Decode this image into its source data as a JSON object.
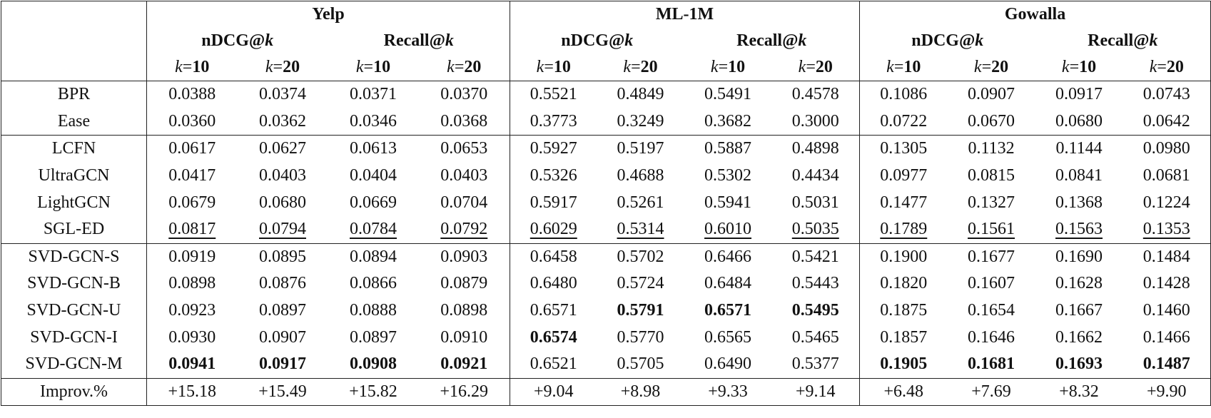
{
  "header": {
    "groups": [
      {
        "title": "Yelp",
        "metrics": [
          {
            "title": "nDCG@k",
            "ks": [
              "k=10",
              "k=20"
            ]
          },
          {
            "title": "Recall@k",
            "ks": [
              "k=10",
              "k=20"
            ]
          }
        ]
      },
      {
        "title": "ML-1M",
        "metrics": [
          {
            "title": "nDCG@k",
            "ks": [
              "k=10",
              "k=20"
            ]
          },
          {
            "title": "Recall@k",
            "ks": [
              "k=10",
              "k=20"
            ]
          }
        ]
      },
      {
        "title": "Gowalla",
        "metrics": [
          {
            "title": "nDCG@k",
            "ks": [
              "k=10",
              "k=20"
            ]
          },
          {
            "title": "Recall@k",
            "ks": [
              "k=10",
              "k=20"
            ]
          }
        ]
      }
    ]
  },
  "sections": [
    [
      {
        "method": "BPR",
        "cells": [
          "0.0388",
          "0.0374",
          "0.0371",
          "0.0370",
          "0.5521",
          "0.4849",
          "0.5491",
          "0.4578",
          "0.1086",
          "0.0907",
          "0.0917",
          "0.0743"
        ]
      },
      {
        "method": "Ease",
        "cells": [
          "0.0360",
          "0.0362",
          "0.0346",
          "0.0368",
          "0.3773",
          "0.3249",
          "0.3682",
          "0.3000",
          "0.0722",
          "0.0670",
          "0.0680",
          "0.0642"
        ]
      }
    ],
    [
      {
        "method": "LCFN",
        "cells": [
          "0.0617",
          "0.0627",
          "0.0613",
          "0.0653",
          "0.5927",
          "0.5197",
          "0.5887",
          "0.4898",
          "0.1305",
          "0.1132",
          "0.1144",
          "0.0980"
        ]
      },
      {
        "method": "UltraGCN",
        "cells": [
          "0.0417",
          "0.0403",
          "0.0404",
          "0.0403",
          "0.5326",
          "0.4688",
          "0.5302",
          "0.4434",
          "0.0977",
          "0.0815",
          "0.0841",
          "0.0681"
        ]
      },
      {
        "method": "LightGCN",
        "cells": [
          "0.0679",
          "0.0680",
          "0.0669",
          "0.0704",
          "0.5917",
          "0.5261",
          "0.5941",
          "0.5031",
          "0.1477",
          "0.1327",
          "0.1368",
          "0.1224"
        ]
      },
      {
        "method": "SGL-ED",
        "cells": [
          {
            "text": "0.0817",
            "underline": true
          },
          {
            "text": "0.0794",
            "underline": true
          },
          {
            "text": "0.0784",
            "underline": true
          },
          {
            "text": "0.0792",
            "underline": true
          },
          {
            "text": "0.6029",
            "underline": true
          },
          {
            "text": "0.5314",
            "underline": true
          },
          {
            "text": "0.6010",
            "underline": true
          },
          {
            "text": "0.5035",
            "underline": true
          },
          {
            "text": "0.1789",
            "underline": true
          },
          {
            "text": "0.1561",
            "underline": true
          },
          {
            "text": "0.1563",
            "underline": true
          },
          {
            "text": "0.1353",
            "underline": true
          }
        ]
      }
    ],
    [
      {
        "method": "SVD-GCN-S",
        "cells": [
          "0.0919",
          "0.0895",
          "0.0894",
          "0.0903",
          "0.6458",
          "0.5702",
          "0.6466",
          "0.5421",
          "0.1900",
          "0.1677",
          "0.1690",
          "0.1484"
        ]
      },
      {
        "method": "SVD-GCN-B",
        "cells": [
          "0.0898",
          "0.0876",
          "0.0866",
          "0.0879",
          "0.6480",
          "0.5724",
          "0.6484",
          "0.5443",
          "0.1820",
          "0.1607",
          "0.1628",
          "0.1428"
        ]
      },
      {
        "method": "SVD-GCN-U",
        "cells": [
          "0.0923",
          "0.0897",
          "0.0888",
          "0.0898",
          "0.6571",
          {
            "text": "0.5791",
            "bold": true
          },
          {
            "text": "0.6571",
            "bold": true
          },
          {
            "text": "0.5495",
            "bold": true
          },
          "0.1875",
          "0.1654",
          "0.1667",
          "0.1460"
        ]
      },
      {
        "method": "SVD-GCN-I",
        "cells": [
          "0.0930",
          "0.0907",
          "0.0897",
          "0.0910",
          {
            "text": "0.6574",
            "bold": true
          },
          "0.5770",
          "0.6565",
          "0.5465",
          "0.1857",
          "0.1646",
          "0.1662",
          "0.1466"
        ]
      },
      {
        "method": "SVD-GCN-M",
        "cells": [
          {
            "text": "0.0941",
            "bold": true
          },
          {
            "text": "0.0917",
            "bold": true
          },
          {
            "text": "0.0908",
            "bold": true
          },
          {
            "text": "0.0921",
            "bold": true
          },
          "0.6521",
          "0.5705",
          "0.6490",
          "0.5377",
          {
            "text": "0.1905",
            "bold": true
          },
          {
            "text": "0.1681",
            "bold": true
          },
          {
            "text": "0.1693",
            "bold": true
          },
          {
            "text": "0.1487",
            "bold": true
          }
        ]
      }
    ],
    [
      {
        "method": "Improv.%",
        "cells": [
          "+15.18",
          "+15.49",
          "+15.82",
          "+16.29",
          "+9.04",
          "+8.98",
          "+9.33",
          "+9.14",
          "+6.48",
          "+7.69",
          "+8.32",
          "+9.90"
        ]
      }
    ]
  ]
}
